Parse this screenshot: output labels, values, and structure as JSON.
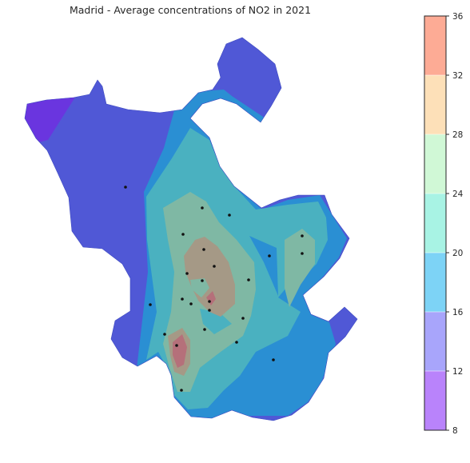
{
  "chart_data": {
    "type": "contour",
    "title": "Madrid - Average concentrations of NO2 in 2021",
    "xlabel": "",
    "ylabel": "",
    "grid": false,
    "colorbar": {
      "levels": [
        8,
        12,
        16,
        20,
        24,
        28,
        32,
        36
      ],
      "tick_labels": [
        "8",
        "12",
        "16",
        "20",
        "24",
        "28",
        "32",
        "36"
      ],
      "colors": [
        "#b983fb",
        "#a8a5fb",
        "#7dd3f6",
        "#a8f3e4",
        "#d0f8d6",
        "#fde0b8",
        "#fdab95"
      ]
    },
    "band_colors_on_map": [
      "#6a35df",
      "#5058d6",
      "#2a8fd3",
      "#4ab1c0",
      "#7fb8a4",
      "#a59986",
      "#b5707a"
    ],
    "stations": [
      {
        "label": "station"
      },
      {
        "label": "station"
      },
      {
        "label": "station"
      },
      {
        "label": "station"
      },
      {
        "label": "station"
      },
      {
        "label": "station"
      },
      {
        "label": "station"
      },
      {
        "label": "station"
      },
      {
        "label": "station"
      },
      {
        "label": "station"
      },
      {
        "label": "station"
      },
      {
        "label": "station"
      },
      {
        "label": "station"
      },
      {
        "label": "station"
      },
      {
        "label": "station"
      },
      {
        "label": "station"
      },
      {
        "label": "station"
      },
      {
        "label": "station"
      },
      {
        "label": "station"
      },
      {
        "label": "station"
      },
      {
        "label": "station"
      },
      {
        "label": "station"
      },
      {
        "label": "station"
      },
      {
        "label": "station"
      }
    ]
  }
}
